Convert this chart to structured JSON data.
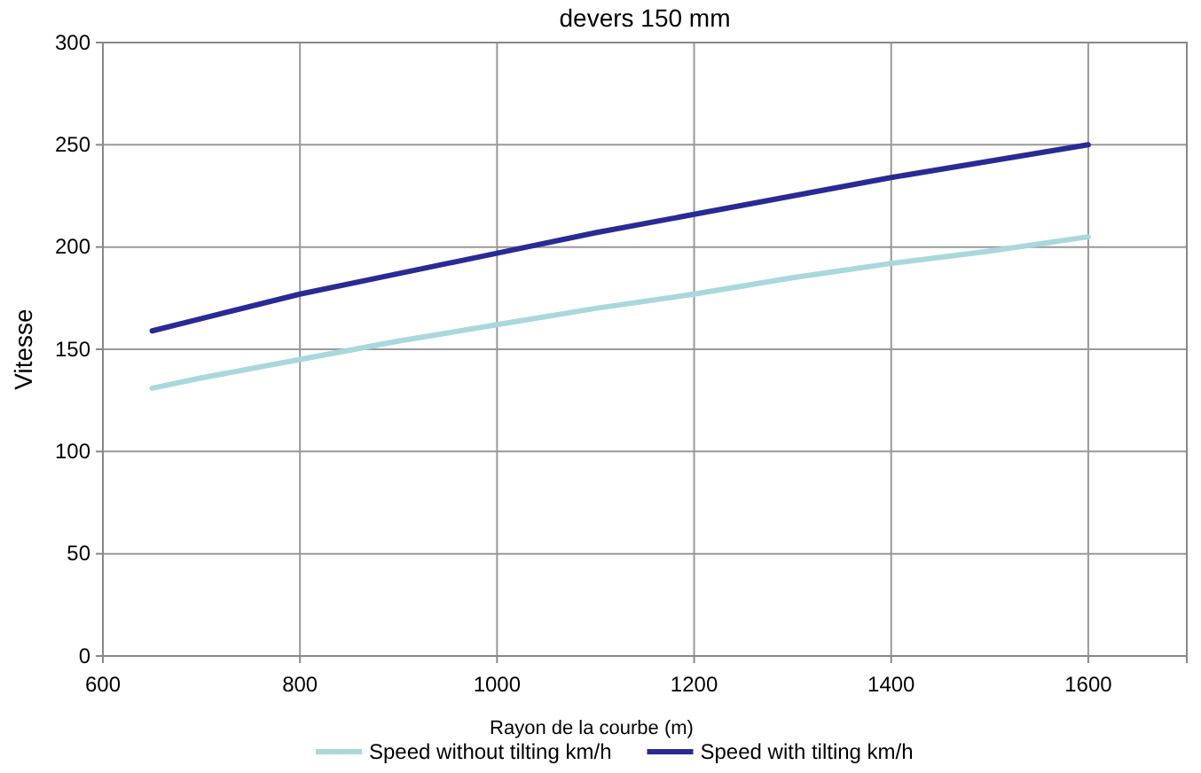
{
  "chart_data": {
    "type": "line",
    "title": "devers 150 mm",
    "xlabel": "Rayon de la courbe (m)",
    "ylabel": "Vitesse",
    "x": [
      650,
      700,
      800,
      900,
      1000,
      1100,
      1200,
      1300,
      1400,
      1500,
      1600
    ],
    "series": [
      {
        "name": "Speed without tilting km/h",
        "color": "#a8d8dc",
        "values": [
          131,
          136,
          145,
          154,
          162,
          170,
          177,
          185,
          192,
          198,
          205
        ]
      },
      {
        "name": "Speed with tilting km/h",
        "color": "#2a2a96",
        "values": [
          159,
          165,
          177,
          187,
          197,
          207,
          216,
          225,
          234,
          242,
          250
        ]
      }
    ],
    "xlim": [
      600,
      1700
    ],
    "xticks": [
      600,
      800,
      1000,
      1200,
      1400,
      1600
    ],
    "ylim": [
      0,
      300
    ],
    "yticks": [
      0,
      50,
      100,
      150,
      200,
      250,
      300
    ],
    "grid": true,
    "legend": "bottom",
    "marker": "none",
    "line_style": "solid"
  }
}
